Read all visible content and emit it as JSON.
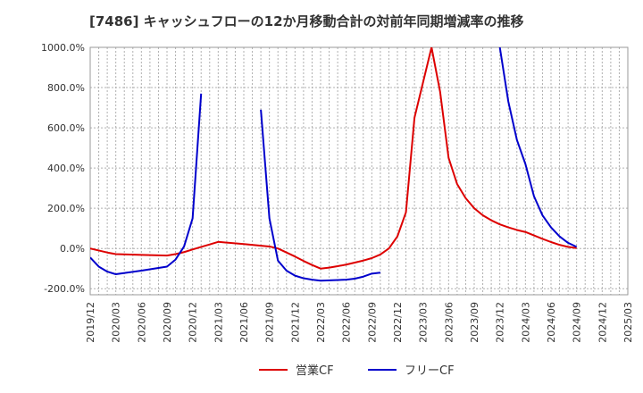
{
  "chart_data": {
    "type": "line",
    "title": "[7486]  キャッシュフローの12か月移動合計の対前年同期増減率の推移",
    "xlabel": "",
    "ylabel": "",
    "ylim": [
      -230,
      1000
    ],
    "xlim": [
      "2019/12",
      "2025/03"
    ],
    "grid": true,
    "legend_position": "bottom-center",
    "yticks": [
      -200,
      0,
      200,
      400,
      600,
      800,
      1000
    ],
    "ytick_labels": [
      "-200.0%",
      "0.0%",
      "200.0%",
      "400.0%",
      "600.0%",
      "800.0%",
      "1000.0%"
    ],
    "xticks": [
      "2019/12",
      "2020/03",
      "2020/06",
      "2020/09",
      "2020/12",
      "2021/03",
      "2021/06",
      "2021/09",
      "2021/12",
      "2022/03",
      "2022/06",
      "2022/09",
      "2022/12",
      "2023/03",
      "2023/06",
      "2023/09",
      "2023/12",
      "2024/03",
      "2024/06",
      "2024/09",
      "2024/12",
      "2025/03"
    ],
    "series": [
      {
        "name": "営業CF",
        "color": "#dd0000",
        "points": [
          [
            "2019/12",
            0
          ],
          [
            "2020/01",
            -10
          ],
          [
            "2020/02",
            -20
          ],
          [
            "2020/03",
            -28
          ],
          [
            "2020/06",
            -32
          ],
          [
            "2020/09",
            -35
          ],
          [
            "2020/10",
            -28
          ],
          [
            "2020/11",
            -18
          ],
          [
            "2020/12",
            -5
          ],
          [
            "2021/01",
            8
          ],
          [
            "2021/02",
            20
          ],
          [
            "2021/03",
            33
          ],
          [
            "2021/06",
            22
          ],
          [
            "2021/09",
            10
          ],
          [
            "2021/10",
            0
          ],
          [
            "2021/11",
            -20
          ],
          [
            "2021/12",
            -40
          ],
          [
            "2022/01",
            -62
          ],
          [
            "2022/02",
            -82
          ],
          [
            "2022/03",
            -100
          ],
          [
            "2022/04",
            -95
          ],
          [
            "2022/05",
            -88
          ],
          [
            "2022/06",
            -80
          ],
          [
            "2022/07",
            -70
          ],
          [
            "2022/08",
            -60
          ],
          [
            "2022/09",
            -48
          ],
          [
            "2022/10",
            -30
          ],
          [
            "2022/11",
            0
          ],
          [
            "2022/12",
            60
          ],
          [
            "2023/01",
            180
          ],
          [
            "2023/02",
            650
          ],
          [
            "2023/04",
            1000
          ],
          [
            "2023/05",
            780
          ],
          [
            "2023/06",
            450
          ],
          [
            "2023/07",
            320
          ],
          [
            "2023/08",
            250
          ],
          [
            "2023/09",
            200
          ],
          [
            "2023/10",
            165
          ],
          [
            "2023/11",
            140
          ],
          [
            "2023/12",
            120
          ],
          [
            "2024/01",
            105
          ],
          [
            "2024/02",
            92
          ],
          [
            "2024/03",
            82
          ],
          [
            "2024/04",
            65
          ],
          [
            "2024/05",
            48
          ],
          [
            "2024/06",
            32
          ],
          [
            "2024/07",
            18
          ],
          [
            "2024/08",
            8
          ],
          [
            "2024/09",
            2
          ]
        ]
      },
      {
        "name": "フリーCF",
        "color": "#0000cc",
        "segments": [
          [
            [
              "2019/12",
              -45
            ],
            [
              "2020/01",
              -90
            ],
            [
              "2020/02",
              -115
            ],
            [
              "2020/03",
              -128
            ],
            [
              "2020/06",
              -110
            ],
            [
              "2020/09",
              -90
            ],
            [
              "2020/10",
              -55
            ],
            [
              "2020/11",
              10
            ],
            [
              "2020/12",
              150
            ],
            [
              "2021/01",
              770
            ]
          ],
          [
            [
              "2021/08",
              690
            ],
            [
              "2021/09",
              150
            ],
            [
              "2021/10",
              -60
            ],
            [
              "2021/11",
              -110
            ],
            [
              "2021/12",
              -135
            ],
            [
              "2022/01",
              -148
            ],
            [
              "2022/02",
              -155
            ],
            [
              "2022/03",
              -160
            ],
            [
              "2022/06",
              -155
            ],
            [
              "2022/07",
              -150
            ],
            [
              "2022/08",
              -140
            ],
            [
              "2022/09",
              -125
            ],
            [
              "2022/10",
              -120
            ]
          ],
          [
            [
              "2023/12",
              1000
            ],
            [
              "2024/01",
              730
            ],
            [
              "2024/02",
              540
            ],
            [
              "2024/03",
              420
            ],
            [
              "2024/04",
              260
            ],
            [
              "2024/05",
              165
            ],
            [
              "2024/06",
              105
            ],
            [
              "2024/07",
              60
            ],
            [
              "2024/08",
              28
            ],
            [
              "2024/09",
              8
            ]
          ]
        ]
      }
    ]
  }
}
